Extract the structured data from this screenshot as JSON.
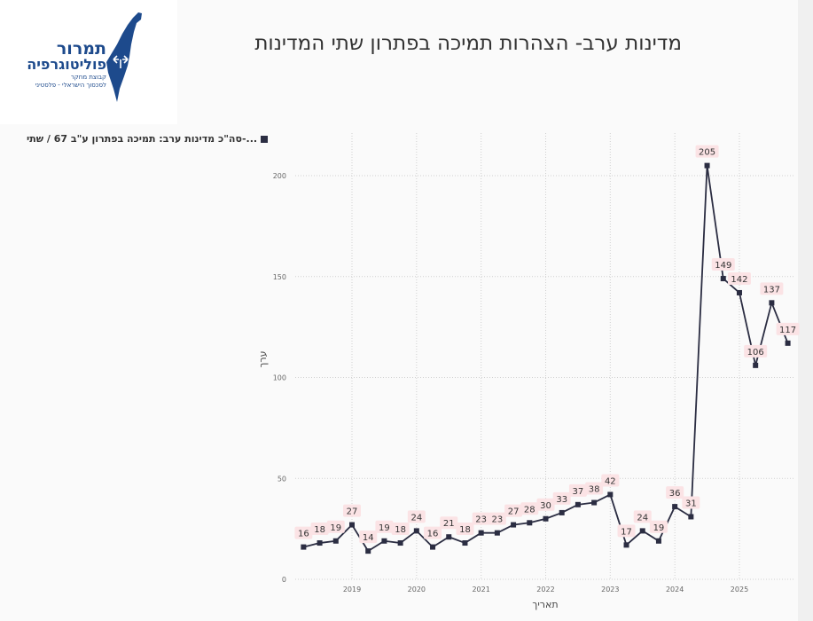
{
  "logo": {
    "name_line1": "תמרור",
    "name_line2": "פוליטוגרפיה",
    "tagline_line1": "קבוצת מחקר",
    "tagline_line2": "לסכסוך הישראלי - פלסטיני",
    "color": "#1d4a8c"
  },
  "header": {
    "title": "מדינות ערב- הצהרות תמיכה בפתרון שתי המדינות"
  },
  "chart_data": {
    "type": "line",
    "title": "מדינות ערב- הצהרות תמיכה בפתרון שתי המדינות",
    "xlabel": "תאריך",
    "ylabel": "ערך",
    "legend": {
      "position": "top-left",
      "entries": [
        "...-סה\"כ מדינות ערב: תמיכה בפתרון ע\"ב 67 / שתי"
      ]
    },
    "ylim": [
      0,
      215
    ],
    "yticks": [
      0,
      50,
      100,
      150,
      200
    ],
    "xticks": [
      "2019",
      "2020",
      "2021",
      "2022",
      "2023",
      "2024",
      "2025"
    ],
    "grid": true,
    "line_color": "#2b2d42",
    "label_bg_color": "#fbe3e5",
    "series": [
      {
        "name": "...-סה\"כ מדינות ערב: תמיכה בפתרון ע\"ב 67 / שתי",
        "x": [
          "2018-04",
          "2018-07",
          "2018-10",
          "2019-01",
          "2019-04",
          "2019-07",
          "2019-10",
          "2020-01",
          "2020-04",
          "2020-07",
          "2020-10",
          "2021-01",
          "2021-04",
          "2021-07",
          "2021-10",
          "2022-01",
          "2022-04",
          "2022-07",
          "2022-10",
          "2023-01",
          "2023-04",
          "2023-07",
          "2023-10",
          "2024-01",
          "2024-04",
          "2024-07",
          "2024-10",
          "2025-01",
          "2025-04",
          "2025-07",
          "2025-10"
        ],
        "values": [
          16,
          18,
          19,
          27,
          14,
          19,
          18,
          24,
          16,
          21,
          18,
          23,
          23,
          27,
          28,
          30,
          33,
          37,
          38,
          42,
          17,
          24,
          19,
          36,
          31,
          205,
          149,
          142,
          106,
          137,
          117
        ]
      }
    ]
  }
}
